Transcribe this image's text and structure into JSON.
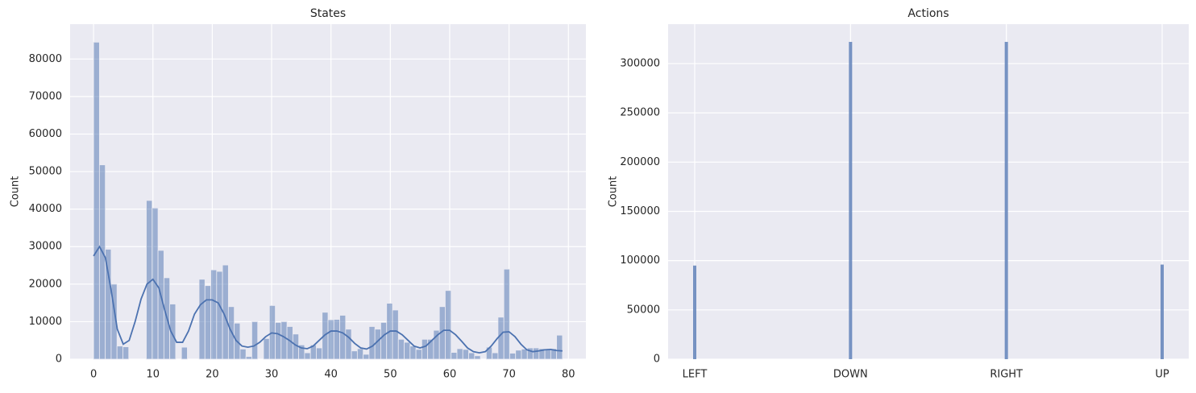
{
  "chart_data": [
    {
      "type": "histogram",
      "title": "States",
      "ylabel": "Count",
      "color": "#4c72b0",
      "grid": true,
      "bins": [
        0,
        0.9875,
        1.975,
        2.9625,
        3.95,
        4.9375,
        5.925,
        6.9125,
        7.9,
        8.8875,
        9.875,
        10.8625,
        11.85,
        12.8375,
        13.825,
        14.8125,
        15.8,
        16.7875,
        17.775,
        18.7625,
        19.75,
        20.7375,
        21.725,
        22.7125,
        23.7,
        24.6875,
        25.675,
        26.6625,
        27.65,
        28.6375,
        29.625,
        30.6125,
        31.6,
        32.5875,
        33.575,
        34.5625,
        35.55,
        36.5375,
        37.525,
        38.5125,
        39.5,
        40.4875,
        41.475,
        42.4625,
        43.45,
        44.4375,
        45.425,
        46.4125,
        47.4,
        48.3875,
        49.375,
        50.3625,
        51.35,
        52.3375,
        53.325,
        54.3125,
        55.3,
        56.2875,
        57.275,
        58.2625,
        59.25,
        60.2375,
        61.225,
        62.2125,
        63.2,
        64.1875,
        65.175,
        66.1625,
        67.15,
        68.1375,
        69.125,
        70.1125,
        71.1,
        72.0875,
        73.075,
        74.0625,
        75.05,
        76.0375,
        77.025,
        78.0125,
        79
      ],
      "values": [
        84500,
        51800,
        29300,
        20000,
        3500,
        3300,
        0,
        0,
        0,
        42300,
        40300,
        29000,
        21700,
        14700,
        0,
        3200,
        0,
        0,
        21300,
        19600,
        23800,
        23400,
        25100,
        14000,
        9600,
        2700,
        700,
        10000,
        0,
        5500,
        14300,
        9800,
        10000,
        8700,
        6700,
        3800,
        1700,
        3800,
        3000,
        12500,
        10500,
        10600,
        11700,
        8000,
        2200,
        2800,
        1300,
        8700,
        8000,
        9800,
        14900,
        13100,
        5300,
        4500,
        3500,
        2600,
        5300,
        5300,
        7700,
        14000,
        18300,
        1800,
        2800,
        2600,
        1700,
        900,
        0,
        3200,
        1700,
        11200,
        24000,
        1600,
        2400,
        2700,
        3000,
        3000,
        2800,
        2700,
        2800,
        6400
      ],
      "kde": {
        "x": [
          0,
          1,
          2,
          3,
          4,
          5,
          6,
          7,
          8,
          9,
          10,
          11,
          12,
          13,
          14,
          15,
          16,
          17,
          18,
          19,
          20,
          21,
          22,
          23,
          24,
          25,
          26,
          27,
          28,
          29,
          30,
          31,
          32,
          33,
          34,
          35,
          36,
          37,
          38,
          39,
          40,
          41,
          42,
          43,
          44,
          45,
          46,
          47,
          48,
          49,
          50,
          51,
          52,
          53,
          54,
          55,
          56,
          57,
          58,
          59,
          60,
          61,
          62,
          63,
          64,
          65,
          66,
          67,
          68,
          69,
          70,
          71,
          72,
          73,
          74,
          75,
          76,
          77,
          78,
          79
        ],
        "values": [
          27500,
          30000,
          27000,
          18000,
          8000,
          4000,
          5000,
          10000,
          16000,
          20000,
          21300,
          19000,
          13000,
          7500,
          4500,
          4500,
          7500,
          12000,
          14500,
          15800,
          15800,
          15000,
          12000,
          8000,
          5000,
          3500,
          3200,
          3500,
          4500,
          6000,
          7000,
          6800,
          6000,
          5000,
          3800,
          3000,
          2800,
          3500,
          5000,
          6500,
          7500,
          7500,
          7000,
          5800,
          4200,
          3000,
          2700,
          3500,
          5000,
          6500,
          7500,
          7500,
          6500,
          5000,
          3500,
          3000,
          3500,
          5000,
          6500,
          7700,
          7700,
          6500,
          4800,
          3000,
          2000,
          1700,
          2000,
          3500,
          5500,
          7200,
          7300,
          6000,
          4000,
          2500,
          2000,
          2200,
          2500,
          2600,
          2300,
          2200
        ]
      },
      "xlim": [
        -3.95,
        82.95
      ],
      "xticks": [
        0,
        10,
        20,
        30,
        40,
        50,
        60,
        70,
        80
      ],
      "ylim": [
        0,
        89300
      ],
      "yticks": [
        0,
        10000,
        20000,
        30000,
        40000,
        50000,
        60000,
        70000,
        80000
      ]
    },
    {
      "type": "bar",
      "title": "Actions",
      "ylabel": "Count",
      "color": "#4c72b0",
      "grid": true,
      "categories": [
        "LEFT",
        "DOWN",
        "RIGHT",
        "UP"
      ],
      "values": [
        95000,
        322000,
        322000,
        96000
      ],
      "ylim": [
        0,
        340000
      ],
      "yticks": [
        0,
        50000,
        100000,
        150000,
        200000,
        250000,
        300000
      ]
    }
  ]
}
